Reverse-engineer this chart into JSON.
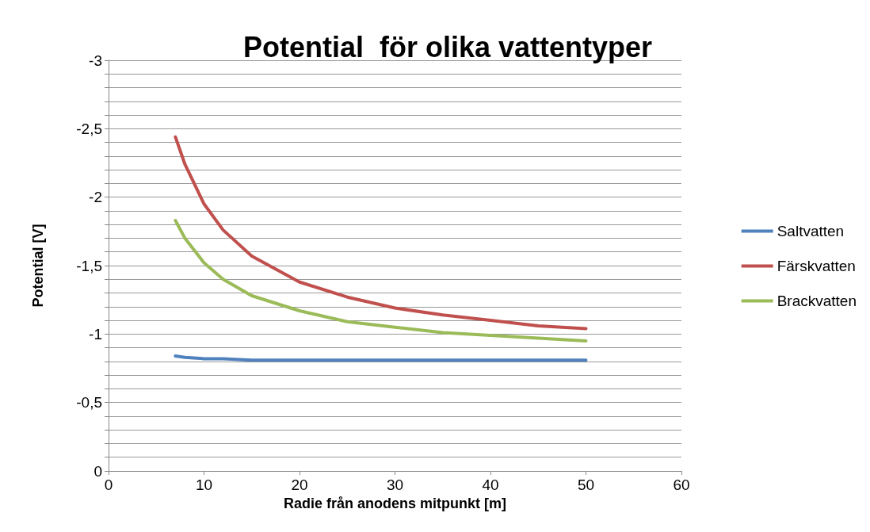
{
  "chart_data": {
    "type": "line",
    "title": "Potential  för olika vattentyper",
    "xlabel": "Radie från anodens mitpunkt [m]",
    "ylabel": "Potential [V]",
    "x": [
      7,
      8,
      10,
      12,
      15,
      20,
      25,
      30,
      35,
      40,
      45,
      50
    ],
    "series": [
      {
        "name": "Saltvatten",
        "color": "#4f81bd",
        "values": [
          -0.84,
          -0.83,
          -0.82,
          -0.82,
          -0.81,
          -0.81,
          -0.81,
          -0.81,
          -0.81,
          -0.81,
          -0.81,
          -0.81
        ]
      },
      {
        "name": "Färskvatten",
        "color": "#c0504d",
        "values": [
          -2.44,
          -2.24,
          -1.95,
          -1.76,
          -1.57,
          -1.38,
          -1.27,
          -1.19,
          -1.14,
          -1.1,
          -1.06,
          -1.04
        ]
      },
      {
        "name": "Brackvatten",
        "color": "#9bbb59",
        "values": [
          -1.83,
          -1.7,
          -1.52,
          -1.4,
          -1.28,
          -1.17,
          -1.09,
          -1.05,
          -1.01,
          -0.99,
          -0.97,
          -0.95
        ]
      }
    ],
    "xlim": [
      0,
      60
    ],
    "xticks": [
      0,
      10,
      20,
      30,
      40,
      50,
      60
    ],
    "ylim": [
      0,
      -3
    ],
    "yticks": [
      {
        "value": 0,
        "label": "0"
      },
      {
        "value": -0.1,
        "label": null
      },
      {
        "value": -0.2,
        "label": null
      },
      {
        "value": -0.3,
        "label": null
      },
      {
        "value": -0.4,
        "label": null
      },
      {
        "value": -0.5,
        "label": "-0,5"
      },
      {
        "value": -0.6,
        "label": null
      },
      {
        "value": -0.7,
        "label": null
      },
      {
        "value": -0.8,
        "label": null
      },
      {
        "value": -0.9,
        "label": null
      },
      {
        "value": -1,
        "label": "-1"
      },
      {
        "value": -1.1,
        "label": null
      },
      {
        "value": -1.2,
        "label": null
      },
      {
        "value": -1.3,
        "label": null
      },
      {
        "value": -1.4,
        "label": null
      },
      {
        "value": -1.5,
        "label": "-1,5"
      },
      {
        "value": -1.6,
        "label": null
      },
      {
        "value": -1.7,
        "label": null
      },
      {
        "value": -1.8,
        "label": null
      },
      {
        "value": -1.9,
        "label": null
      },
      {
        "value": -2,
        "label": "-2"
      },
      {
        "value": -2.1,
        "label": null
      },
      {
        "value": -2.2,
        "label": null
      },
      {
        "value": -2.3,
        "label": null
      },
      {
        "value": -2.4,
        "label": null
      },
      {
        "value": -2.5,
        "label": "-2,5"
      },
      {
        "value": -2.6,
        "label": null
      },
      {
        "value": -2.7,
        "label": null
      },
      {
        "value": -2.8,
        "label": null
      },
      {
        "value": -2.9,
        "label": null
      },
      {
        "value": -3,
        "label": "-3"
      }
    ],
    "grid": "y",
    "legend": "right",
    "marker": "none",
    "line_style": "solid"
  }
}
